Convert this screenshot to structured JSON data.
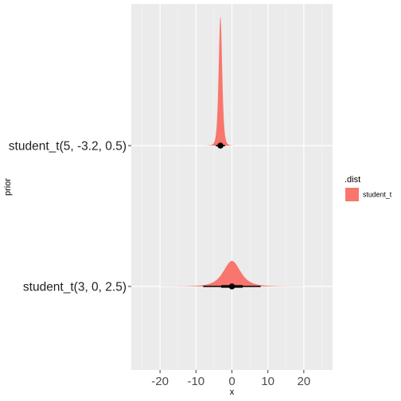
{
  "chart_data": {
    "type": "area",
    "title": "",
    "xlabel": "x",
    "ylabel": "prior",
    "xlim": [
      -28,
      28
    ],
    "x_ticks": [
      -20,
      -10,
      0,
      10,
      20
    ],
    "x_tick_labels": [
      "-20",
      "-10",
      "0",
      "10",
      "20"
    ],
    "grid": true,
    "legend": {
      "title": ".dist",
      "position": "right",
      "entries": [
        {
          "label": "student_t",
          "color": "#F8766D"
        }
      ]
    },
    "categories": [
      "student_t(5, -3.2, 0.5)",
      "student_t(3, 0, 2.5)"
    ],
    "series": [
      {
        "name": "student_t",
        "prior": "student_t(5, -3.2, 0.5)",
        "df": 5,
        "location": -3.2,
        "scale": 0.5,
        "point": -3.2,
        "interval_66": [
          -3.75,
          -2.65
        ],
        "interval_95": [
          -4.5,
          -1.9
        ]
      },
      {
        "name": "student_t",
        "prior": "student_t(3, 0, 2.5)",
        "df": 3,
        "location": 0,
        "scale": 2.5,
        "point": 0,
        "interval_66": [
          -3.0,
          3.0
        ],
        "interval_95": [
          -8.0,
          8.0
        ]
      }
    ]
  }
}
